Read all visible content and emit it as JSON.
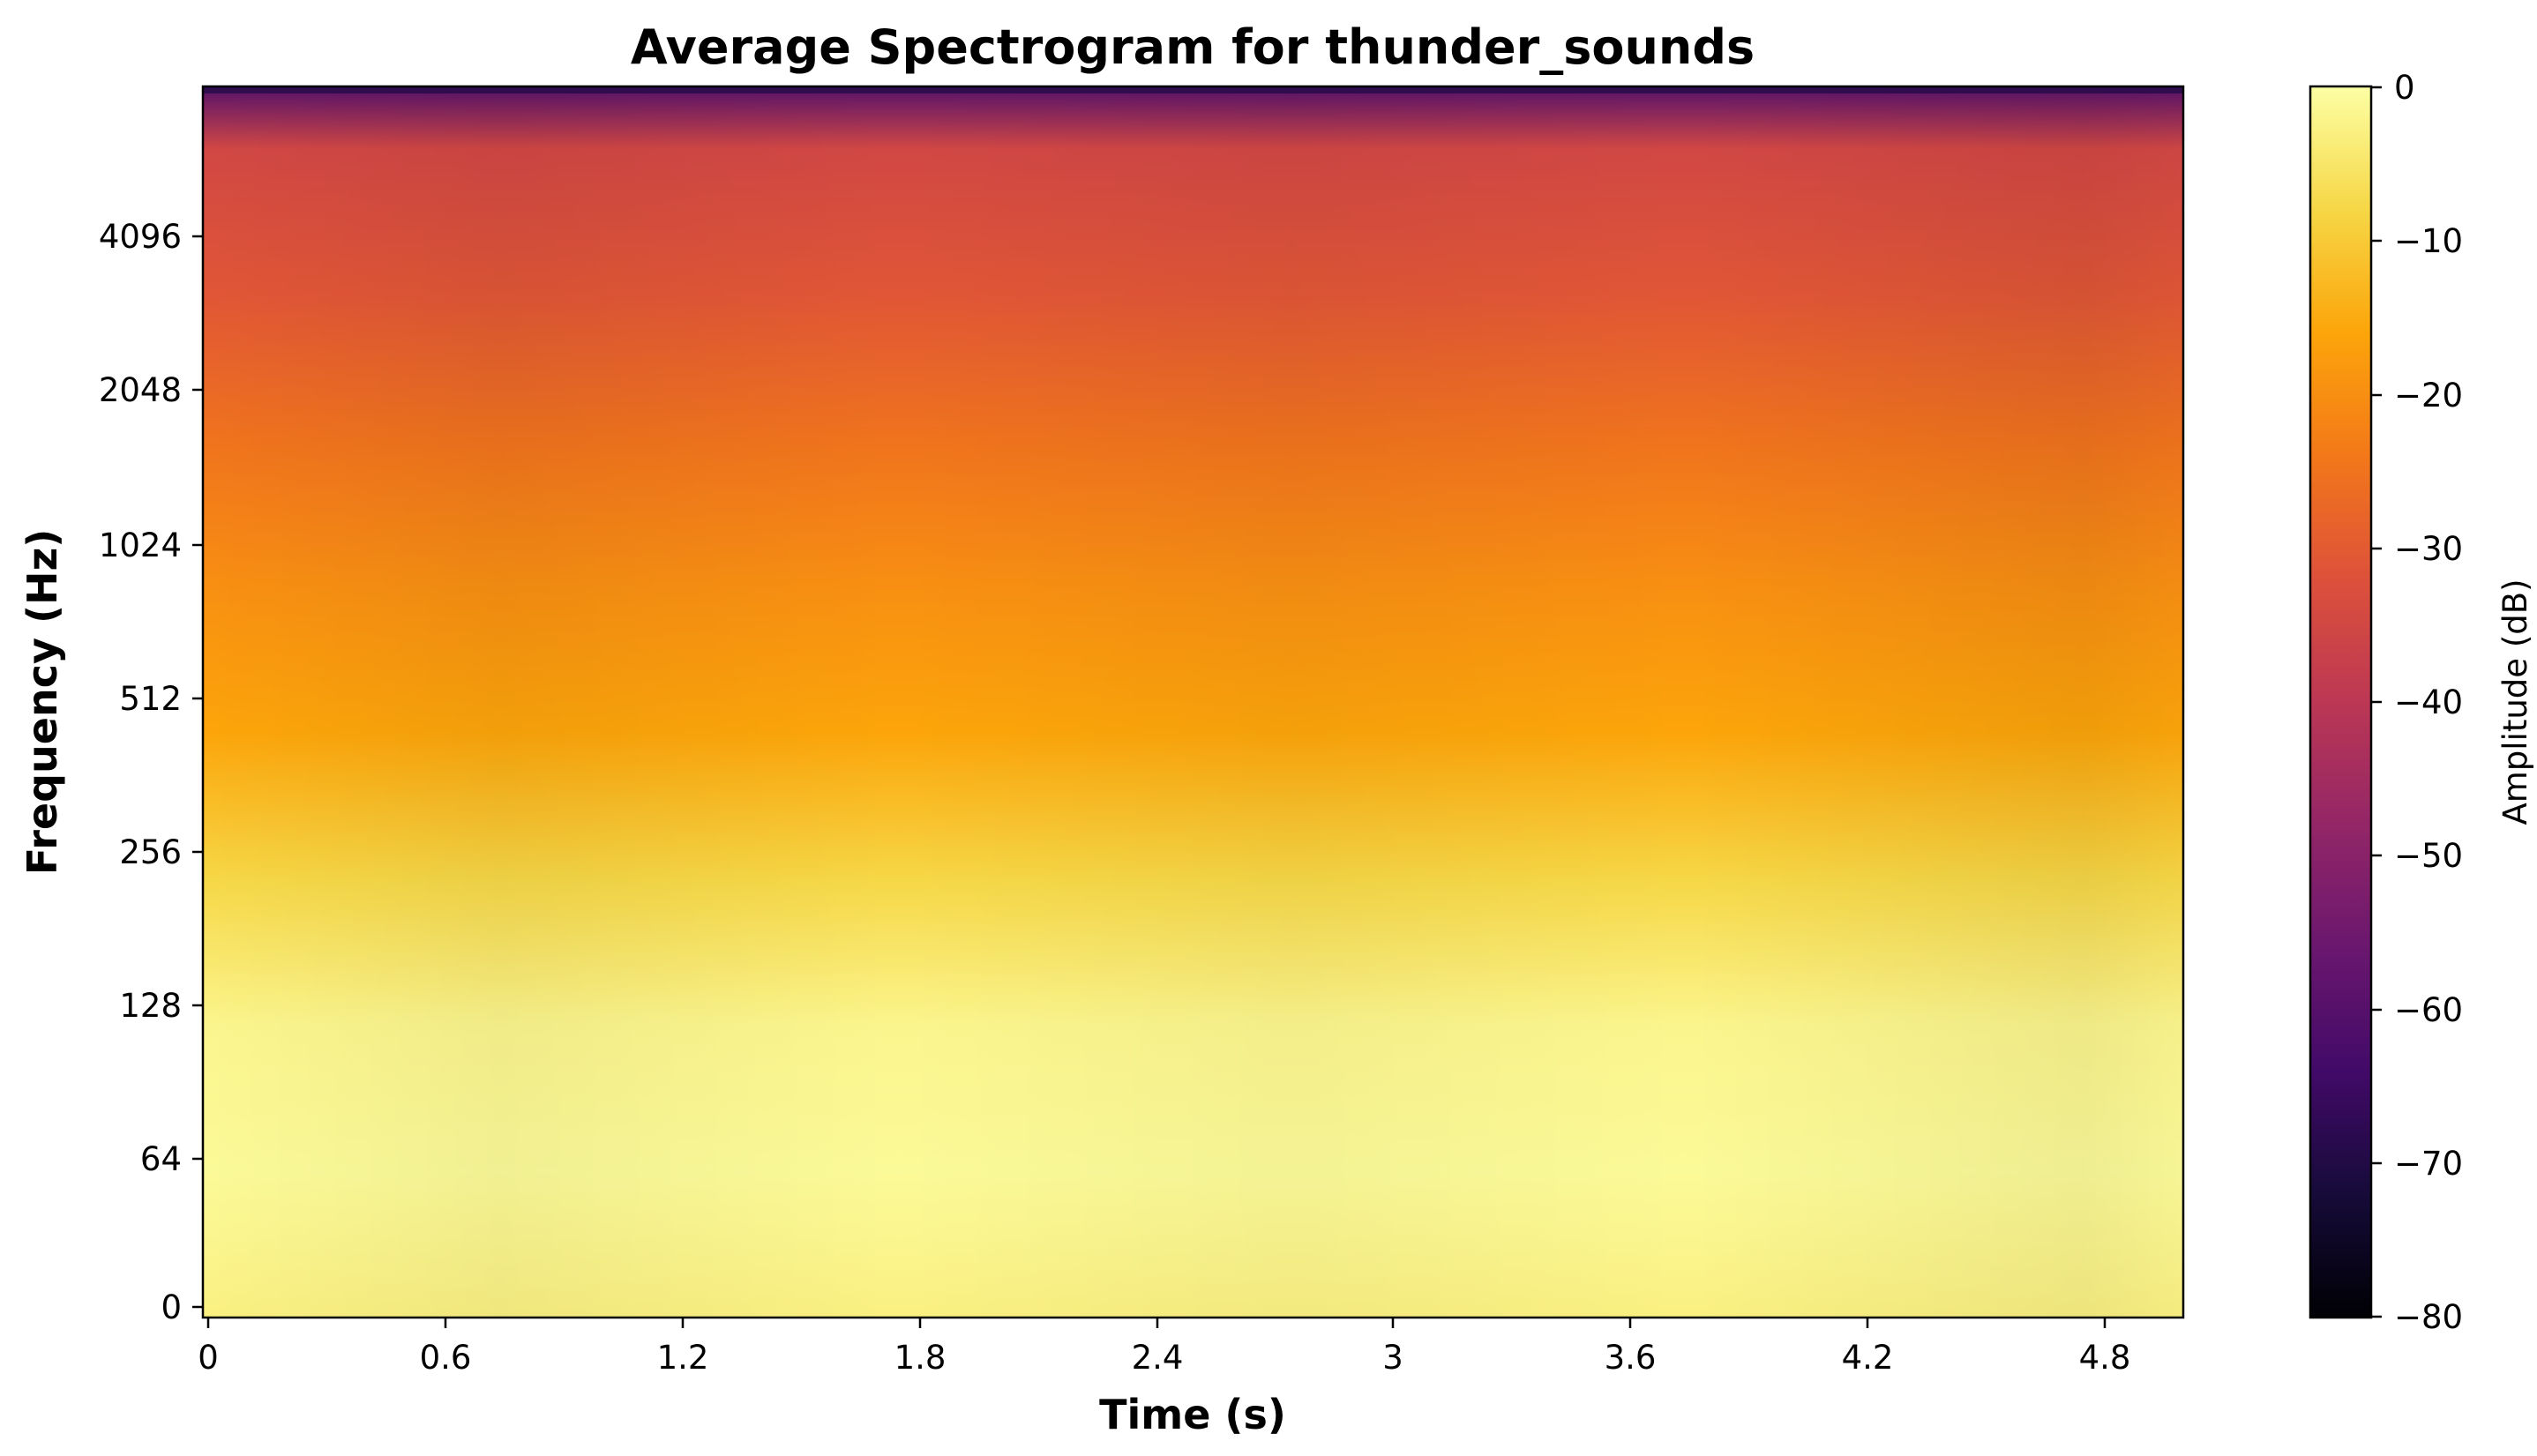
{
  "chart_data": {
    "type": "heatmap",
    "title": "Average Spectrogram for thunder_sounds",
    "xlabel": "Time (s)",
    "ylabel": "Frequency (Hz)",
    "xlim": [
      0,
      5.0
    ],
    "y_scale": "symlog",
    "ylim": [
      0,
      11025
    ],
    "x_ticks": [
      "0",
      "0.6",
      "1.2",
      "1.8",
      "2.4",
      "3",
      "3.6",
      "4.2",
      "4.8"
    ],
    "y_ticks": [
      "0",
      "64",
      "128",
      "256",
      "512",
      "1024",
      "2048",
      "4096"
    ],
    "colormap": "inferno",
    "colorbar": {
      "label": "Amplitude (dB)",
      "range": [
        -80,
        0
      ],
      "ticks": [
        "0",
        "−10",
        "−20",
        "−30",
        "−40",
        "−50",
        "−60",
        "−70",
        "−80"
      ]
    },
    "amplitude_profile_db": [
      {
        "freq_hz": 0,
        "db": -3
      },
      {
        "freq_hz": 32,
        "db": -2
      },
      {
        "freq_hz": 64,
        "db": -1
      },
      {
        "freq_hz": 128,
        "db": -2
      },
      {
        "freq_hz": 256,
        "db": -8
      },
      {
        "freq_hz": 512,
        "db": -16
      },
      {
        "freq_hz": 1024,
        "db": -20
      },
      {
        "freq_hz": 2048,
        "db": -25
      },
      {
        "freq_hz": 4096,
        "db": -31
      },
      {
        "freq_hz": 8192,
        "db": -35
      },
      {
        "freq_hz": 11025,
        "db": -60
      }
    ],
    "grid": false,
    "legend": "none"
  }
}
